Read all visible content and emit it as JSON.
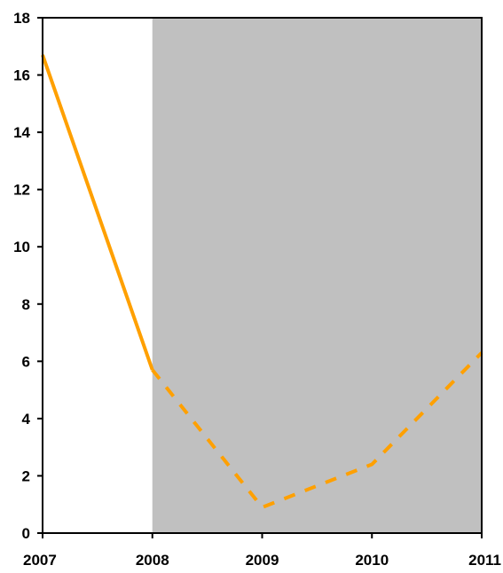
{
  "chart_data": {
    "type": "line",
    "title": "",
    "xlabel": "",
    "ylabel": "",
    "xlim": [
      2007,
      2011
    ],
    "ylim": [
      0,
      18
    ],
    "x_ticks": [
      "2007",
      "2008",
      "2009",
      "2010",
      "2011"
    ],
    "y_ticks": [
      "0",
      "2",
      "4",
      "6",
      "8",
      "10",
      "12",
      "14",
      "16",
      "18"
    ],
    "grid": false,
    "legend": "none",
    "shaded_region": {
      "x_start": 2008,
      "x_end": 2011,
      "color": "#c0c0c0"
    },
    "series": [
      {
        "style": "solid",
        "color": "#ffa000",
        "x": [
          2007,
          2008
        ],
        "y": [
          16.7,
          5.7
        ]
      },
      {
        "style": "dashed",
        "color": "#ffa000",
        "x": [
          2008,
          2009,
          2010,
          2011
        ],
        "y": [
          5.7,
          0.9,
          2.4,
          6.3
        ]
      }
    ]
  }
}
